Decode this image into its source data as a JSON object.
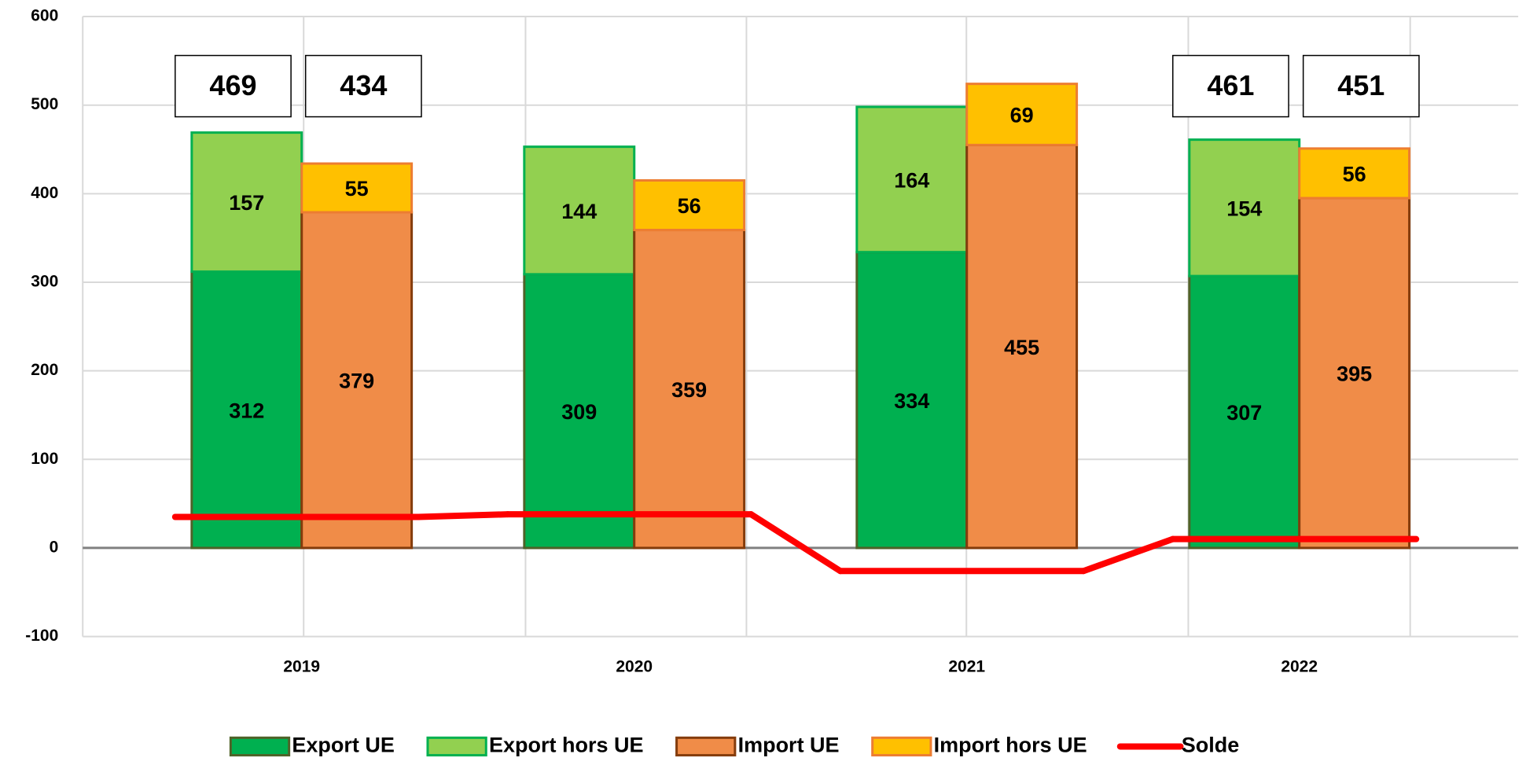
{
  "chart_data": {
    "type": "bar",
    "stacked": true,
    "categories": [
      "2019",
      "2020",
      "2021",
      "2022"
    ],
    "ylim": [
      -100,
      600
    ],
    "yticks": [
      -100,
      0,
      100,
      200,
      300,
      400,
      500,
      600
    ],
    "grid": true,
    "legend": "bottom",
    "series": [
      {
        "name": "Export UE",
        "color": "#00b050",
        "stroke": "#4f6228",
        "stack": "export",
        "values": [
          312,
          309,
          334,
          307
        ]
      },
      {
        "name": "Export hors UE",
        "color": "#92d050",
        "stroke": "#00b050",
        "stack": "export",
        "values": [
          157,
          144,
          164,
          154
        ]
      },
      {
        "name": "Import UE",
        "color": "#f08c48",
        "stroke": "#843c0c",
        "stack": "import",
        "values": [
          379,
          359,
          455,
          395
        ]
      },
      {
        "name": "Import hors UE",
        "color": "#ffc000",
        "stroke": "#ed7d31",
        "stack": "import",
        "values": [
          55,
          56,
          69,
          56
        ]
      },
      {
        "name": "Solde",
        "type": "line",
        "color": "#ff0000",
        "values": [
          35,
          38,
          -26,
          10
        ]
      }
    ],
    "annotations": [
      {
        "category": "2019",
        "values": [
          469,
          434
        ]
      },
      {
        "category": "2022",
        "values": [
          461,
          451
        ]
      }
    ]
  }
}
